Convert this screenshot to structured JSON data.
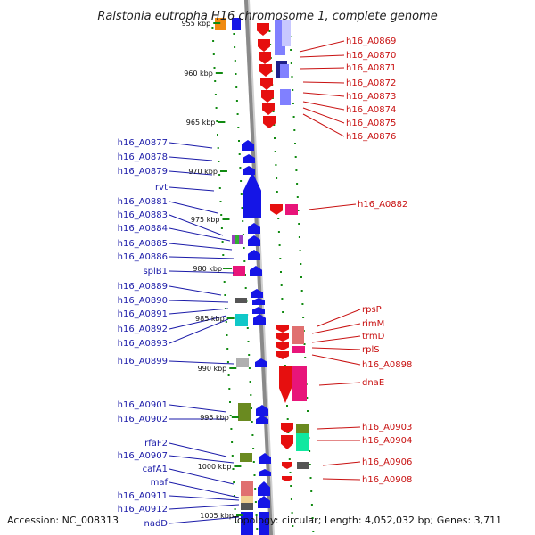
{
  "title": "Ralstonia eutropha H16 chromosome 1, complete genome",
  "accession": "Accession: NC_008313",
  "topology": "Topology: circular; Length: 4,052,032 bp; Genes: 3,711",
  "colors": {
    "forward_strand": "#1515e6",
    "reverse_strand": "#e60f0f",
    "tick": "#118a11",
    "backbone": "#8a8a8a"
  },
  "kbp_ticks": [
    "955 kbp",
    "960 kbp",
    "965 kbp",
    "970 kbp",
    "975 kbp",
    "980 kbp",
    "985 kbp",
    "990 kbp",
    "995 kbp",
    "1000 kbp",
    "1005 kbp"
  ],
  "left_labels": [
    "h16_A0877",
    "h16_A0878",
    "h16_A0879",
    "rvt",
    "h16_A0881",
    "h16_A0883",
    "h16_A0884",
    "h16_A0885",
    "h16_A0886",
    "splB1",
    "h16_A0889",
    "h16_A0890",
    "h16_A0891",
    "h16_A0892",
    "h16_A0893",
    "h16_A0899",
    "h16_A0901",
    "h16_A0902",
    "rfaF2",
    "h16_A0907",
    "cafA1",
    "maf",
    "h16_A0911",
    "h16_A0912",
    "nadD"
  ],
  "right_labels": [
    "h16_A0869",
    "h16_A0870",
    "h16_A0871",
    "h16_A0872",
    "h16_A0873",
    "h16_A0874",
    "h16_A0875",
    "h16_A0876",
    "h16_A0882",
    "rpsP",
    "rimM",
    "trmD",
    "rplS",
    "h16_A0898",
    "dnaE",
    "h16_A0903",
    "h16_A0904",
    "h16_A0906",
    "h16_A0908"
  ]
}
